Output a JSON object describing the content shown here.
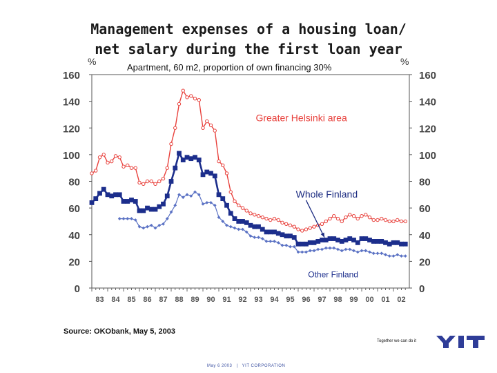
{
  "slide": {
    "title_line1": "Management expenses of a housing loan/",
    "title_line2": "net salary during the first loan year",
    "unit_left": "%",
    "unit_right": "%",
    "source": "Source: OKObank, May 5, 2003",
    "tagline": "Together we can do it",
    "footer_date": "May 6 2003",
    "footer_sep": "|",
    "footer_company": "YIT CORPORATION"
  },
  "colors": {
    "greater_helsinki": "#e8413c",
    "whole_finland": "#1c2e8c",
    "other_finland": "#5b72c4",
    "logo": "#2f3d98"
  },
  "chart_data": {
    "type": "line",
    "title": "Apartment, 60 m2, proportion of own financing 30%",
    "ylabel": "%",
    "ylim": [
      0,
      160
    ],
    "yticks": [
      0,
      20,
      40,
      60,
      80,
      100,
      120,
      140,
      160
    ],
    "xlim": [
      1983,
      2003
    ],
    "xticks": [
      "83",
      "84",
      "85",
      "86",
      "87",
      "88",
      "89",
      "90",
      "91",
      "92",
      "93",
      "94",
      "95",
      "96",
      "97",
      "98",
      "99",
      "00",
      "01",
      "02"
    ],
    "grid": false,
    "annotations": [
      {
        "text": "Greater Helsinki area",
        "series": "Greater Helsinki area",
        "x": 1996.2,
        "y": 127
      },
      {
        "text": "Whole Finland",
        "series": "Whole Finland",
        "x": 1997.8,
        "y": 70
      },
      {
        "text": "Other Finland",
        "series": "Other Finland",
        "x": 1998.2,
        "y": 10
      }
    ],
    "series": [
      {
        "name": "Greater Helsinki area",
        "points": [
          [
            1983.0,
            86
          ],
          [
            1983.25,
            88
          ],
          [
            1983.5,
            98
          ],
          [
            1983.75,
            100
          ],
          [
            1984.0,
            94
          ],
          [
            1984.25,
            95
          ],
          [
            1984.5,
            99
          ],
          [
            1984.75,
            98
          ],
          [
            1985.0,
            91
          ],
          [
            1985.25,
            92
          ],
          [
            1985.5,
            90
          ],
          [
            1985.75,
            90
          ],
          [
            1986.0,
            79
          ],
          [
            1986.25,
            78
          ],
          [
            1986.5,
            80
          ],
          [
            1986.75,
            80
          ],
          [
            1987.0,
            78
          ],
          [
            1987.25,
            80
          ],
          [
            1987.5,
            82
          ],
          [
            1987.75,
            90
          ],
          [
            1988.0,
            108
          ],
          [
            1988.25,
            120
          ],
          [
            1988.5,
            138
          ],
          [
            1988.75,
            148
          ],
          [
            1989.0,
            143
          ],
          [
            1989.25,
            144
          ],
          [
            1989.5,
            142
          ],
          [
            1989.75,
            141
          ],
          [
            1990.0,
            120
          ],
          [
            1990.25,
            125
          ],
          [
            1990.5,
            122
          ],
          [
            1990.75,
            118
          ],
          [
            1991.0,
            95
          ],
          [
            1991.25,
            92
          ],
          [
            1991.5,
            86
          ],
          [
            1991.75,
            72
          ],
          [
            1992.0,
            65
          ],
          [
            1992.25,
            62
          ],
          [
            1992.5,
            60
          ],
          [
            1992.75,
            58
          ],
          [
            1993.0,
            56
          ],
          [
            1993.25,
            55
          ],
          [
            1993.5,
            54
          ],
          [
            1993.75,
            53
          ],
          [
            1994.0,
            52
          ],
          [
            1994.25,
            51
          ],
          [
            1994.5,
            52
          ],
          [
            1994.75,
            51
          ],
          [
            1995.0,
            49
          ],
          [
            1995.25,
            48
          ],
          [
            1995.5,
            47
          ],
          [
            1995.75,
            46
          ],
          [
            1996.0,
            44
          ],
          [
            1996.25,
            43
          ],
          [
            1996.5,
            44
          ],
          [
            1996.75,
            45
          ],
          [
            1997.0,
            46
          ],
          [
            1997.25,
            47
          ],
          [
            1997.5,
            48
          ],
          [
            1997.75,
            50
          ],
          [
            1998.0,
            52
          ],
          [
            1998.25,
            54
          ],
          [
            1998.5,
            52
          ],
          [
            1998.75,
            50
          ],
          [
            1999.0,
            53
          ],
          [
            1999.25,
            55
          ],
          [
            1999.5,
            54
          ],
          [
            1999.75,
            52
          ],
          [
            2000.0,
            54
          ],
          [
            2000.25,
            55
          ],
          [
            2000.5,
            53
          ],
          [
            2000.75,
            51
          ],
          [
            2001.0,
            51
          ],
          [
            2001.25,
            52
          ],
          [
            2001.5,
            51
          ],
          [
            2001.75,
            50
          ],
          [
            2002.0,
            50
          ],
          [
            2002.25,
            51
          ],
          [
            2002.5,
            50
          ],
          [
            2002.75,
            50
          ]
        ]
      },
      {
        "name": "Whole Finland",
        "points": [
          [
            1983.0,
            64
          ],
          [
            1983.25,
            67
          ],
          [
            1983.5,
            71
          ],
          [
            1983.75,
            74
          ],
          [
            1984.0,
            70
          ],
          [
            1984.25,
            69
          ],
          [
            1984.5,
            70
          ],
          [
            1984.75,
            70
          ],
          [
            1985.0,
            65
          ],
          [
            1985.25,
            65
          ],
          [
            1985.5,
            66
          ],
          [
            1985.75,
            65
          ],
          [
            1986.0,
            58
          ],
          [
            1986.25,
            58
          ],
          [
            1986.5,
            60
          ],
          [
            1986.75,
            59
          ],
          [
            1987.0,
            59
          ],
          [
            1987.25,
            61
          ],
          [
            1987.5,
            63
          ],
          [
            1987.75,
            69
          ],
          [
            1988.0,
            80
          ],
          [
            1988.25,
            90
          ],
          [
            1988.5,
            101
          ],
          [
            1988.75,
            96
          ],
          [
            1989.0,
            98
          ],
          [
            1989.25,
            97
          ],
          [
            1989.5,
            98
          ],
          [
            1989.75,
            96
          ],
          [
            1990.0,
            85
          ],
          [
            1990.25,
            87
          ],
          [
            1990.5,
            86
          ],
          [
            1990.75,
            84
          ],
          [
            1991.0,
            70
          ],
          [
            1991.25,
            67
          ],
          [
            1991.5,
            62
          ],
          [
            1991.75,
            56
          ],
          [
            1992.0,
            52
          ],
          [
            1992.25,
            50
          ],
          [
            1992.5,
            50
          ],
          [
            1992.75,
            49
          ],
          [
            1993.0,
            47
          ],
          [
            1993.25,
            46
          ],
          [
            1993.5,
            46
          ],
          [
            1993.75,
            44
          ],
          [
            1994.0,
            42
          ],
          [
            1994.25,
            42
          ],
          [
            1994.5,
            42
          ],
          [
            1994.75,
            41
          ],
          [
            1995.0,
            40
          ],
          [
            1995.25,
            39
          ],
          [
            1995.5,
            39
          ],
          [
            1995.75,
            38
          ],
          [
            1996.0,
            33
          ],
          [
            1996.25,
            33
          ],
          [
            1996.5,
            33
          ],
          [
            1996.75,
            34
          ],
          [
            1997.0,
            34
          ],
          [
            1997.25,
            35
          ],
          [
            1997.5,
            36
          ],
          [
            1997.75,
            36
          ],
          [
            1998.0,
            37
          ],
          [
            1998.25,
            37
          ],
          [
            1998.5,
            36
          ],
          [
            1998.75,
            35
          ],
          [
            1999.0,
            36
          ],
          [
            1999.25,
            37
          ],
          [
            1999.5,
            36
          ],
          [
            1999.75,
            34
          ],
          [
            2000.0,
            37
          ],
          [
            2000.25,
            37
          ],
          [
            2000.5,
            36
          ],
          [
            2000.75,
            35
          ],
          [
            2001.0,
            35
          ],
          [
            2001.25,
            35
          ],
          [
            2001.5,
            34
          ],
          [
            2001.75,
            33
          ],
          [
            2002.0,
            34
          ],
          [
            2002.25,
            34
          ],
          [
            2002.5,
            33
          ],
          [
            2002.75,
            33
          ]
        ]
      },
      {
        "name": "Other Finland",
        "points": [
          [
            1984.75,
            52
          ],
          [
            1985.0,
            52
          ],
          [
            1985.25,
            52
          ],
          [
            1985.5,
            52
          ],
          [
            1985.75,
            51
          ],
          [
            1986.0,
            46
          ],
          [
            1986.25,
            45
          ],
          [
            1986.5,
            46
          ],
          [
            1986.75,
            47
          ],
          [
            1987.0,
            45
          ],
          [
            1987.25,
            47
          ],
          [
            1987.5,
            48
          ],
          [
            1987.75,
            52
          ],
          [
            1988.0,
            57
          ],
          [
            1988.25,
            62
          ],
          [
            1988.5,
            70
          ],
          [
            1988.75,
            68
          ],
          [
            1989.0,
            70
          ],
          [
            1989.25,
            69
          ],
          [
            1989.5,
            72
          ],
          [
            1989.75,
            70
          ],
          [
            1990.0,
            63
          ],
          [
            1990.25,
            64
          ],
          [
            1990.5,
            64
          ],
          [
            1990.75,
            62
          ],
          [
            1991.0,
            53
          ],
          [
            1991.25,
            50
          ],
          [
            1991.5,
            47
          ],
          [
            1991.75,
            46
          ],
          [
            1992.0,
            45
          ],
          [
            1992.25,
            44
          ],
          [
            1992.5,
            44
          ],
          [
            1992.75,
            42
          ],
          [
            1993.0,
            39
          ],
          [
            1993.25,
            38
          ],
          [
            1993.5,
            38
          ],
          [
            1993.75,
            37
          ],
          [
            1994.0,
            35
          ],
          [
            1994.25,
            35
          ],
          [
            1994.5,
            35
          ],
          [
            1994.75,
            34
          ],
          [
            1995.0,
            32
          ],
          [
            1995.25,
            32
          ],
          [
            1995.5,
            31
          ],
          [
            1995.75,
            31
          ],
          [
            1996.0,
            27
          ],
          [
            1996.25,
            27
          ],
          [
            1996.5,
            27
          ],
          [
            1996.75,
            28
          ],
          [
            1997.0,
            28
          ],
          [
            1997.25,
            29
          ],
          [
            1997.5,
            29
          ],
          [
            1997.75,
            30
          ],
          [
            1998.0,
            30
          ],
          [
            1998.25,
            30
          ],
          [
            1998.5,
            29
          ],
          [
            1998.75,
            28
          ],
          [
            1999.0,
            29
          ],
          [
            1999.25,
            29
          ],
          [
            1999.5,
            28
          ],
          [
            1999.75,
            27
          ],
          [
            2000.0,
            28
          ],
          [
            2000.25,
            28
          ],
          [
            2000.5,
            27
          ],
          [
            2000.75,
            26
          ],
          [
            2001.0,
            26
          ],
          [
            2001.25,
            26
          ],
          [
            2001.5,
            25
          ],
          [
            2001.75,
            24
          ],
          [
            2002.0,
            24
          ],
          [
            2002.25,
            25
          ],
          [
            2002.5,
            24
          ],
          [
            2002.75,
            24
          ]
        ]
      }
    ]
  }
}
